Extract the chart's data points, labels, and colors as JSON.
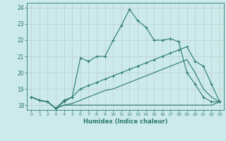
{
  "xlabel": "Humidex (Indice chaleur)",
  "bg_color": "#cceaea",
  "grid_color": "#bbcccc",
  "line_color": "#2a7a6a",
  "xlim": [
    -0.5,
    23.5
  ],
  "ylim": [
    17.7,
    24.3
  ],
  "xticks": [
    0,
    1,
    2,
    3,
    4,
    5,
    6,
    7,
    8,
    9,
    10,
    11,
    12,
    13,
    14,
    15,
    16,
    17,
    18,
    19,
    20,
    21,
    22,
    23
  ],
  "yticks": [
    18,
    19,
    20,
    21,
    22,
    23,
    24
  ],
  "series1_x": [
    0,
    1,
    2,
    3,
    4,
    5,
    6,
    7,
    8,
    9,
    10,
    11,
    12,
    13,
    14,
    15,
    16,
    17,
    18,
    19,
    20,
    21,
    22,
    23
  ],
  "series1_y": [
    18.5,
    18.3,
    18.2,
    17.8,
    18.2,
    18.5,
    20.9,
    20.7,
    21.0,
    21.0,
    22.0,
    22.9,
    23.9,
    23.2,
    22.8,
    22.0,
    22.0,
    22.1,
    21.9,
    20.0,
    19.3,
    18.5,
    18.2,
    18.2
  ],
  "series2_x": [
    0,
    1,
    2,
    3,
    4,
    5,
    6,
    7,
    8,
    9,
    10,
    11,
    12,
    13,
    14,
    15,
    16,
    17,
    18,
    19,
    20,
    21,
    22,
    23
  ],
  "series2_y": [
    18.5,
    18.3,
    18.2,
    17.8,
    18.3,
    18.5,
    19.0,
    19.2,
    19.4,
    19.6,
    19.8,
    20.0,
    20.2,
    20.4,
    20.6,
    20.8,
    21.0,
    21.2,
    21.4,
    21.6,
    20.7,
    20.4,
    19.3,
    18.2
  ],
  "series3_x": [
    0,
    1,
    2,
    3,
    4,
    5,
    6,
    7,
    8,
    9,
    10,
    11,
    12,
    13,
    14,
    15,
    16,
    17,
    18,
    19,
    20,
    21,
    22,
    23
  ],
  "series3_y": [
    18.5,
    18.3,
    18.2,
    17.8,
    18.0,
    18.0,
    18.0,
    18.0,
    18.0,
    18.0,
    18.0,
    18.0,
    18.0,
    18.0,
    18.0,
    18.0,
    18.0,
    18.0,
    18.0,
    18.0,
    18.0,
    18.0,
    18.0,
    18.2
  ],
  "series4_x": [
    0,
    1,
    2,
    3,
    4,
    5,
    6,
    7,
    8,
    9,
    10,
    11,
    12,
    13,
    14,
    15,
    16,
    17,
    18,
    19,
    20,
    21,
    22,
    23
  ],
  "series4_y": [
    18.5,
    18.3,
    18.2,
    17.8,
    18.0,
    18.1,
    18.3,
    18.5,
    18.7,
    18.9,
    19.0,
    19.2,
    19.4,
    19.6,
    19.8,
    20.0,
    20.2,
    20.4,
    20.6,
    20.8,
    20.0,
    19.0,
    18.5,
    18.2
  ]
}
